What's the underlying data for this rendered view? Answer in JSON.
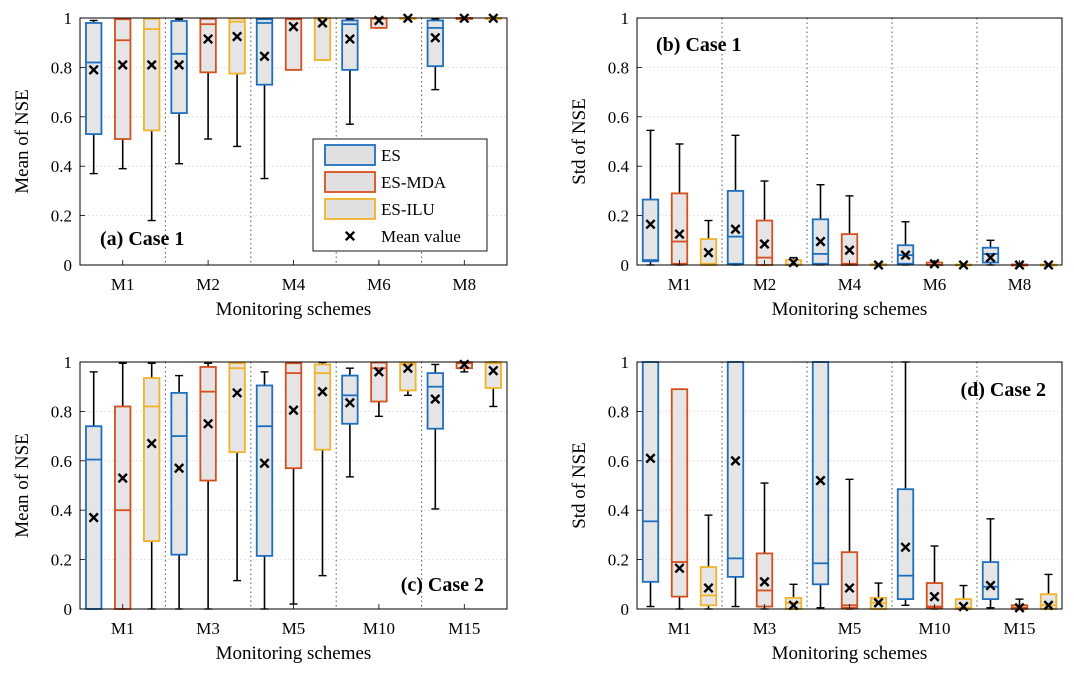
{
  "colors": {
    "ES": "#1f6fbf",
    "ES-MDA": "#d4501e",
    "ES-ILU": "#f0b32a",
    "mean_marker": "#000000",
    "box_fill": "#e0e0e0"
  },
  "legend": {
    "entries": [
      {
        "name": "ES",
        "method": "ES"
      },
      {
        "name": "ES-MDA",
        "method": "ES-MDA"
      },
      {
        "name": "ES-ILU",
        "method": "ES-ILU"
      },
      {
        "name": "Mean value",
        "method": "mean"
      }
    ],
    "placement": "lower-right of panel (a)"
  },
  "chart_data": [
    {
      "type": "box",
      "panel_label": "(a) Case 1",
      "xlabel": "Monitoring schemes",
      "ylabel": "Mean of NSE",
      "ylim": [
        0,
        1
      ],
      "yticks": [
        "0",
        "0.2",
        "0.4",
        "0.6",
        "0.8",
        "1"
      ],
      "categories": [
        "M1",
        "M2",
        "M4",
        "M6",
        "M8"
      ],
      "methods": [
        "ES",
        "ES-MDA",
        "ES-ILU"
      ],
      "boxes": [
        [
          {
            "min": 0.37,
            "q1": 0.53,
            "median": 0.82,
            "q3": 0.98,
            "max": 0.99,
            "mean": 0.79
          },
          {
            "min": 0.39,
            "q1": 0.51,
            "median": 0.91,
            "q3": 0.995,
            "max": 0.999,
            "mean": 0.81
          },
          {
            "min": 0.18,
            "q1": 0.545,
            "median": 0.955,
            "q3": 0.997,
            "max": 0.999,
            "mean": 0.81
          }
        ],
        [
          {
            "min": 0.41,
            "q1": 0.615,
            "median": 0.855,
            "q3": 0.988,
            "max": 0.995,
            "mean": 0.81
          },
          {
            "min": 0.51,
            "q1": 0.78,
            "median": 0.975,
            "q3": 0.997,
            "max": 0.999,
            "mean": 0.915
          },
          {
            "min": 0.48,
            "q1": 0.775,
            "median": 0.985,
            "q3": 0.998,
            "max": 0.999,
            "mean": 0.925
          }
        ],
        [
          {
            "min": 0.35,
            "q1": 0.73,
            "median": 0.98,
            "q3": 0.995,
            "max": 0.998,
            "mean": 0.845
          },
          {
            "min": 0.79,
            "q1": 0.79,
            "median": 0.995,
            "q3": 0.998,
            "max": 0.999,
            "mean": 0.965
          },
          {
            "min": 0.83,
            "q1": 0.83,
            "median": 0.998,
            "q3": 0.999,
            "max": 1.0,
            "mean": 0.98
          }
        ],
        [
          {
            "min": 0.57,
            "q1": 0.79,
            "median": 0.975,
            "q3": 0.99,
            "max": 0.995,
            "mean": 0.915
          },
          {
            "min": 0.96,
            "q1": 0.96,
            "median": 0.998,
            "q3": 0.999,
            "max": 1.0,
            "mean": 0.99
          },
          {
            "min": 0.997,
            "q1": 0.998,
            "median": 0.999,
            "q3": 1.0,
            "max": 1.0,
            "mean": 0.999
          }
        ],
        [
          {
            "min": 0.71,
            "q1": 0.805,
            "median": 0.96,
            "q3": 0.99,
            "max": 0.995,
            "mean": 0.92
          },
          {
            "min": 0.998,
            "q1": 0.999,
            "median": 0.999,
            "q3": 1.0,
            "max": 1.0,
            "mean": 0.999
          },
          {
            "min": 0.998,
            "q1": 0.999,
            "median": 0.999,
            "q3": 1.0,
            "max": 1.0,
            "mean": 0.999
          }
        ]
      ]
    },
    {
      "type": "box",
      "panel_label": "(b) Case 1",
      "xlabel": "Monitoring schemes",
      "ylabel": "Std of NSE",
      "ylim": [
        0,
        1
      ],
      "yticks": [
        "0",
        "0.2",
        "0.4",
        "0.6",
        "0.8",
        "1"
      ],
      "categories": [
        "M1",
        "M2",
        "M4",
        "M6",
        "M8"
      ],
      "methods": [
        "ES",
        "ES-MDA",
        "ES-ILU"
      ],
      "boxes": [
        [
          {
            "min": 0.0,
            "q1": 0.015,
            "median": 0.02,
            "q3": 0.265,
            "max": 0.545,
            "mean": 0.165
          },
          {
            "min": 0.0,
            "q1": 0.005,
            "median": 0.095,
            "q3": 0.29,
            "max": 0.49,
            "mean": 0.125
          },
          {
            "min": 0.0,
            "q1": 0.0,
            "median": 0.005,
            "q3": 0.105,
            "max": 0.18,
            "mean": 0.05
          }
        ],
        [
          {
            "min": 0.0,
            "q1": 0.005,
            "median": 0.115,
            "q3": 0.3,
            "max": 0.525,
            "mean": 0.145
          },
          {
            "min": 0.0,
            "q1": 0.0,
            "median": 0.03,
            "q3": 0.18,
            "max": 0.34,
            "mean": 0.085
          },
          {
            "min": 0.0,
            "q1": 0.0,
            "median": 0.002,
            "q3": 0.02,
            "max": 0.03,
            "mean": 0.01
          }
        ],
        [
          {
            "min": 0.0,
            "q1": 0.005,
            "median": 0.045,
            "q3": 0.185,
            "max": 0.325,
            "mean": 0.095
          },
          {
            "min": 0.0,
            "q1": 0.0,
            "median": 0.005,
            "q3": 0.125,
            "max": 0.28,
            "mean": 0.06
          },
          {
            "min": 0.0,
            "q1": 0.0,
            "median": 0.0,
            "q3": 0.003,
            "max": 0.005,
            "mean": 0.0
          }
        ],
        [
          {
            "min": 0.0,
            "q1": 0.005,
            "median": 0.04,
            "q3": 0.08,
            "max": 0.175,
            "mean": 0.04
          },
          {
            "min": 0.0,
            "q1": 0.0,
            "median": 0.0,
            "q3": 0.01,
            "max": 0.015,
            "mean": 0.005
          },
          {
            "min": 0.0,
            "q1": 0.0,
            "median": 0.0,
            "q3": 0.002,
            "max": 0.003,
            "mean": 0.0
          }
        ],
        [
          {
            "min": 0.0,
            "q1": 0.01,
            "median": 0.045,
            "q3": 0.07,
            "max": 0.1,
            "mean": 0.03
          },
          {
            "min": 0.0,
            "q1": 0.0,
            "median": 0.0,
            "q3": 0.002,
            "max": 0.003,
            "mean": 0.0
          },
          {
            "min": 0.0,
            "q1": 0.0,
            "median": 0.0,
            "q3": 0.002,
            "max": 0.003,
            "mean": 0.0
          }
        ]
      ]
    },
    {
      "type": "box",
      "panel_label": "(c) Case 2",
      "xlabel": "Monitoring schemes",
      "ylabel": "Mean of NSE",
      "ylim": [
        0,
        1
      ],
      "yticks": [
        "0",
        "0.2",
        "0.4",
        "0.6",
        "0.8",
        "1"
      ],
      "categories": [
        "M1",
        "M3",
        "M5",
        "M10",
        "M15"
      ],
      "methods": [
        "ES",
        "ES-MDA",
        "ES-ILU"
      ],
      "boxes": [
        [
          {
            "min": 0.0,
            "q1": 0.0,
            "median": 0.605,
            "q3": 0.74,
            "max": 0.96,
            "mean": 0.37
          },
          {
            "min": 0.0,
            "q1": 0.0,
            "median": 0.4,
            "q3": 0.82,
            "max": 0.995,
            "mean": 0.53
          },
          {
            "min": 0.0,
            "q1": 0.275,
            "median": 0.82,
            "q3": 0.935,
            "max": 0.995,
            "mean": 0.67
          }
        ],
        [
          {
            "min": 0.0,
            "q1": 0.22,
            "median": 0.7,
            "q3": 0.875,
            "max": 0.945,
            "mean": 0.57
          },
          {
            "min": 0.0,
            "q1": 0.52,
            "median": 0.88,
            "q3": 0.98,
            "max": 0.995,
            "mean": 0.75
          },
          {
            "min": 0.115,
            "q1": 0.635,
            "median": 0.975,
            "q3": 0.995,
            "max": 0.999,
            "mean": 0.875
          }
        ],
        [
          {
            "min": 0.0,
            "q1": 0.215,
            "median": 0.74,
            "q3": 0.905,
            "max": 0.96,
            "mean": 0.59
          },
          {
            "min": 0.02,
            "q1": 0.57,
            "median": 0.955,
            "q3": 0.995,
            "max": 0.999,
            "mean": 0.805
          },
          {
            "min": 0.135,
            "q1": 0.645,
            "median": 0.955,
            "q3": 0.99,
            "max": 0.998,
            "mean": 0.88
          }
        ],
        [
          {
            "min": 0.535,
            "q1": 0.75,
            "median": 0.865,
            "q3": 0.945,
            "max": 0.975,
            "mean": 0.835
          },
          {
            "min": 0.78,
            "q1": 0.84,
            "median": 0.975,
            "q3": 0.998,
            "max": 0.999,
            "mean": 0.96
          },
          {
            "min": 0.865,
            "q1": 0.885,
            "median": 0.99,
            "q3": 0.998,
            "max": 0.999,
            "mean": 0.975
          }
        ],
        [
          {
            "min": 0.405,
            "q1": 0.73,
            "median": 0.9,
            "q3": 0.955,
            "max": 0.99,
            "mean": 0.85
          },
          {
            "min": 0.96,
            "q1": 0.975,
            "median": 0.995,
            "q3": 0.999,
            "max": 1.0,
            "mean": 0.99
          },
          {
            "min": 0.82,
            "q1": 0.895,
            "median": 0.995,
            "q3": 0.999,
            "max": 1.0,
            "mean": 0.965
          }
        ]
      ]
    },
    {
      "type": "box",
      "panel_label": "(d) Case 2",
      "xlabel": "Monitoring schemes",
      "ylabel": "Std of NSE",
      "ylim": [
        0,
        1
      ],
      "yticks": [
        "0",
        "0.2",
        "0.4",
        "0.6",
        "0.8",
        "1"
      ],
      "categories": [
        "M1",
        "M3",
        "M5",
        "M10",
        "M15"
      ],
      "methods": [
        "ES",
        "ES-MDA",
        "ES-ILU"
      ],
      "boxes": [
        [
          {
            "min": 0.01,
            "q1": 0.11,
            "median": 0.355,
            "q3": 1.0,
            "max": 1.0,
            "mean": 0.61
          },
          {
            "min": 0.0,
            "q1": 0.05,
            "median": 0.19,
            "q3": 0.89,
            "max": 0.89,
            "mean": 0.165
          },
          {
            "min": 0.0,
            "q1": 0.015,
            "median": 0.055,
            "q3": 0.17,
            "max": 0.38,
            "mean": 0.085
          }
        ],
        [
          {
            "min": 0.01,
            "q1": 0.13,
            "median": 0.205,
            "q3": 1.0,
            "max": 1.0,
            "mean": 0.6
          },
          {
            "min": 0.0,
            "q1": 0.01,
            "median": 0.075,
            "q3": 0.225,
            "max": 0.51,
            "mean": 0.11
          },
          {
            "min": 0.0,
            "q1": 0.0,
            "median": 0.025,
            "q3": 0.045,
            "max": 0.1,
            "mean": 0.015
          }
        ],
        [
          {
            "min": 0.005,
            "q1": 0.1,
            "median": 0.185,
            "q3": 1.0,
            "max": 1.0,
            "mean": 0.52
          },
          {
            "min": 0.0,
            "q1": 0.005,
            "median": 0.015,
            "q3": 0.23,
            "max": 0.525,
            "mean": 0.085
          },
          {
            "min": 0.0,
            "q1": 0.0,
            "median": 0.025,
            "q3": 0.045,
            "max": 0.105,
            "mean": 0.025
          }
        ],
        [
          {
            "min": 0.015,
            "q1": 0.04,
            "median": 0.135,
            "q3": 0.485,
            "max": 1.0,
            "mean": 0.25
          },
          {
            "min": 0.0,
            "q1": 0.005,
            "median": 0.01,
            "q3": 0.105,
            "max": 0.255,
            "mean": 0.05
          },
          {
            "min": 0.0,
            "q1": 0.0,
            "median": 0.005,
            "q3": 0.04,
            "max": 0.095,
            "mean": 0.01
          }
        ],
        [
          {
            "min": 0.005,
            "q1": 0.04,
            "median": 0.09,
            "q3": 0.19,
            "max": 0.365,
            "mean": 0.095
          },
          {
            "min": 0.0,
            "q1": 0.0,
            "median": 0.005,
            "q3": 0.015,
            "max": 0.04,
            "mean": 0.005
          },
          {
            "min": 0.0,
            "q1": 0.0,
            "median": 0.015,
            "q3": 0.06,
            "max": 0.14,
            "mean": 0.015
          }
        ]
      ]
    }
  ]
}
